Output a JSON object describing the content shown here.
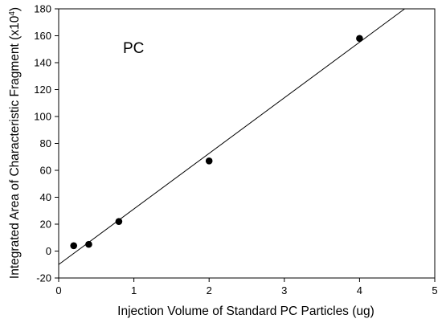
{
  "chart_data": {
    "type": "scatter",
    "title": "",
    "xlabel": "Injection Volume of Standard PC Particles (ug)",
    "ylabel": {
      "prefix": "Integrated Area of Characteristic Fragment (x10",
      "superscript": "4",
      "suffix": ")"
    },
    "xlim": [
      0,
      5
    ],
    "ylim": [
      -20,
      180
    ],
    "xticks": [
      0,
      1,
      2,
      3,
      4,
      5
    ],
    "yticks": [
      -20,
      0,
      20,
      40,
      60,
      80,
      100,
      120,
      140,
      160,
      180
    ],
    "grid": false,
    "legend": "none",
    "annotation": "PC",
    "series": [
      {
        "x": [
          0.2,
          0.4,
          0.8,
          2.0,
          4.0
        ],
        "y": [
          4,
          5,
          22,
          67,
          158
        ]
      }
    ],
    "fit_line": {
      "x": [
        0,
        4.6
      ],
      "y": [
        -10,
        180
      ]
    },
    "colors": {
      "axis": "#000000",
      "marker": "#000000",
      "line": "#000000"
    }
  }
}
